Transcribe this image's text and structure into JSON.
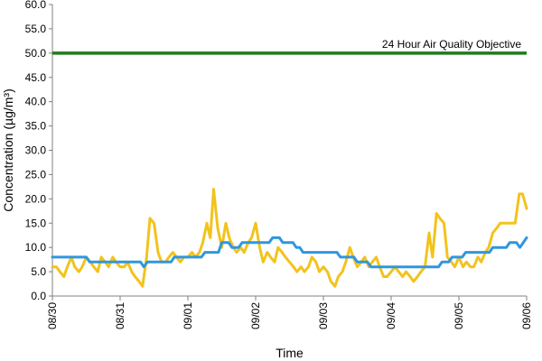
{
  "chart_data": {
    "type": "line",
    "xlabel": "Time",
    "ylabel": "Concentration (µg/m³)",
    "ylim": [
      0,
      60
    ],
    "yticks": [
      "0.0",
      "5.0",
      "10.0",
      "15.0",
      "20.0",
      "25.0",
      "30.0",
      "35.0",
      "40.0",
      "45.0",
      "50.0",
      "55.0",
      "60.0"
    ],
    "xlim": [
      "08/30",
      "09/06"
    ],
    "xticks": [
      "08/30",
      "08/31",
      "09/01",
      "09/02",
      "09/03",
      "09/04",
      "09/05",
      "09/06"
    ],
    "grid": false,
    "legend": "none",
    "annotation": {
      "text": "24 Hour Air Quality Objective",
      "y": 50
    },
    "objective": {
      "y": 50,
      "color": "#1e7a1e"
    },
    "series": [
      {
        "color": "#f2c31c",
        "points": [
          [
            0.0,
            6
          ],
          [
            0.06,
            6
          ],
          [
            0.11,
            5
          ],
          [
            0.17,
            4
          ],
          [
            0.22,
            6
          ],
          [
            0.28,
            8
          ],
          [
            0.33,
            6
          ],
          [
            0.39,
            5
          ],
          [
            0.44,
            6
          ],
          [
            0.5,
            8
          ],
          [
            0.56,
            7
          ],
          [
            0.61,
            6
          ],
          [
            0.67,
            5
          ],
          [
            0.72,
            8
          ],
          [
            0.78,
            7
          ],
          [
            0.83,
            6
          ],
          [
            0.89,
            8
          ],
          [
            0.94,
            7
          ],
          [
            1.0,
            6
          ],
          [
            1.06,
            6
          ],
          [
            1.11,
            7
          ],
          [
            1.17,
            5
          ],
          [
            1.22,
            4
          ],
          [
            1.28,
            3
          ],
          [
            1.33,
            2
          ],
          [
            1.39,
            8
          ],
          [
            1.44,
            16
          ],
          [
            1.5,
            15
          ],
          [
            1.56,
            9
          ],
          [
            1.61,
            7
          ],
          [
            1.67,
            7
          ],
          [
            1.72,
            8
          ],
          [
            1.78,
            9
          ],
          [
            1.83,
            8
          ],
          [
            1.89,
            7
          ],
          [
            1.94,
            8
          ],
          [
            2.0,
            8
          ],
          [
            2.06,
            9
          ],
          [
            2.11,
            8
          ],
          [
            2.17,
            9
          ],
          [
            2.22,
            11
          ],
          [
            2.28,
            15
          ],
          [
            2.33,
            12
          ],
          [
            2.38,
            22
          ],
          [
            2.44,
            14
          ],
          [
            2.5,
            10
          ],
          [
            2.56,
            15
          ],
          [
            2.61,
            12
          ],
          [
            2.67,
            10
          ],
          [
            2.72,
            9
          ],
          [
            2.78,
            10
          ],
          [
            2.83,
            9
          ],
          [
            2.89,
            11
          ],
          [
            2.94,
            12
          ],
          [
            3.0,
            15
          ],
          [
            3.06,
            10
          ],
          [
            3.11,
            7
          ],
          [
            3.17,
            9
          ],
          [
            3.22,
            8
          ],
          [
            3.28,
            7
          ],
          [
            3.33,
            10
          ],
          [
            3.39,
            9
          ],
          [
            3.44,
            8
          ],
          [
            3.5,
            7
          ],
          [
            3.56,
            6
          ],
          [
            3.61,
            5
          ],
          [
            3.67,
            6
          ],
          [
            3.72,
            5
          ],
          [
            3.78,
            6
          ],
          [
            3.83,
            8
          ],
          [
            3.89,
            7
          ],
          [
            3.94,
            5
          ],
          [
            4.0,
            6
          ],
          [
            4.06,
            5
          ],
          [
            4.11,
            3
          ],
          [
            4.17,
            2
          ],
          [
            4.22,
            4
          ],
          [
            4.28,
            5
          ],
          [
            4.33,
            7
          ],
          [
            4.39,
            10
          ],
          [
            4.44,
            8
          ],
          [
            4.5,
            6
          ],
          [
            4.56,
            7
          ],
          [
            4.61,
            8
          ],
          [
            4.67,
            6
          ],
          [
            4.72,
            7
          ],
          [
            4.78,
            8
          ],
          [
            4.83,
            6
          ],
          [
            4.89,
            4
          ],
          [
            4.94,
            4
          ],
          [
            5.0,
            5
          ],
          [
            5.06,
            6
          ],
          [
            5.11,
            5
          ],
          [
            5.17,
            4
          ],
          [
            5.22,
            5
          ],
          [
            5.28,
            4
          ],
          [
            5.33,
            3
          ],
          [
            5.39,
            4
          ],
          [
            5.44,
            5
          ],
          [
            5.5,
            6
          ],
          [
            5.56,
            13
          ],
          [
            5.61,
            8
          ],
          [
            5.67,
            17
          ],
          [
            5.72,
            16
          ],
          [
            5.78,
            15
          ],
          [
            5.83,
            8
          ],
          [
            5.89,
            7
          ],
          [
            5.94,
            6
          ],
          [
            6.0,
            8
          ],
          [
            6.06,
            6
          ],
          [
            6.11,
            7
          ],
          [
            6.17,
            6
          ],
          [
            6.22,
            6
          ],
          [
            6.28,
            8
          ],
          [
            6.33,
            7
          ],
          [
            6.39,
            9
          ],
          [
            6.44,
            10
          ],
          [
            6.5,
            13
          ],
          [
            6.56,
            14
          ],
          [
            6.61,
            15
          ],
          [
            6.67,
            15
          ],
          [
            6.72,
            15
          ],
          [
            6.78,
            15
          ],
          [
            6.83,
            15
          ],
          [
            6.89,
            21
          ],
          [
            6.94,
            21
          ],
          [
            7.0,
            18
          ]
        ]
      },
      {
        "color": "#2f97dd",
        "points": [
          [
            0.0,
            8
          ],
          [
            0.5,
            8
          ],
          [
            0.55,
            7
          ],
          [
            1.3,
            7
          ],
          [
            1.35,
            6
          ],
          [
            1.4,
            7
          ],
          [
            1.75,
            7
          ],
          [
            1.8,
            8
          ],
          [
            2.2,
            8
          ],
          [
            2.25,
            9
          ],
          [
            2.45,
            9
          ],
          [
            2.5,
            11
          ],
          [
            2.6,
            11
          ],
          [
            2.65,
            10
          ],
          [
            2.75,
            10
          ],
          [
            2.8,
            11
          ],
          [
            3.2,
            11
          ],
          [
            3.25,
            12
          ],
          [
            3.35,
            12
          ],
          [
            3.4,
            11
          ],
          [
            3.55,
            11
          ],
          [
            3.6,
            10
          ],
          [
            3.65,
            10
          ],
          [
            3.7,
            9
          ],
          [
            4.2,
            9
          ],
          [
            4.25,
            8
          ],
          [
            4.45,
            8
          ],
          [
            4.5,
            7
          ],
          [
            4.65,
            7
          ],
          [
            4.7,
            6
          ],
          [
            5.7,
            6
          ],
          [
            5.75,
            7
          ],
          [
            5.85,
            7
          ],
          [
            5.9,
            8
          ],
          [
            6.05,
            8
          ],
          [
            6.1,
            9
          ],
          [
            6.45,
            9
          ],
          [
            6.5,
            10
          ],
          [
            6.7,
            10
          ],
          [
            6.75,
            11
          ],
          [
            6.85,
            11
          ],
          [
            6.9,
            10
          ],
          [
            6.95,
            11
          ],
          [
            7.0,
            12
          ]
        ]
      }
    ]
  }
}
